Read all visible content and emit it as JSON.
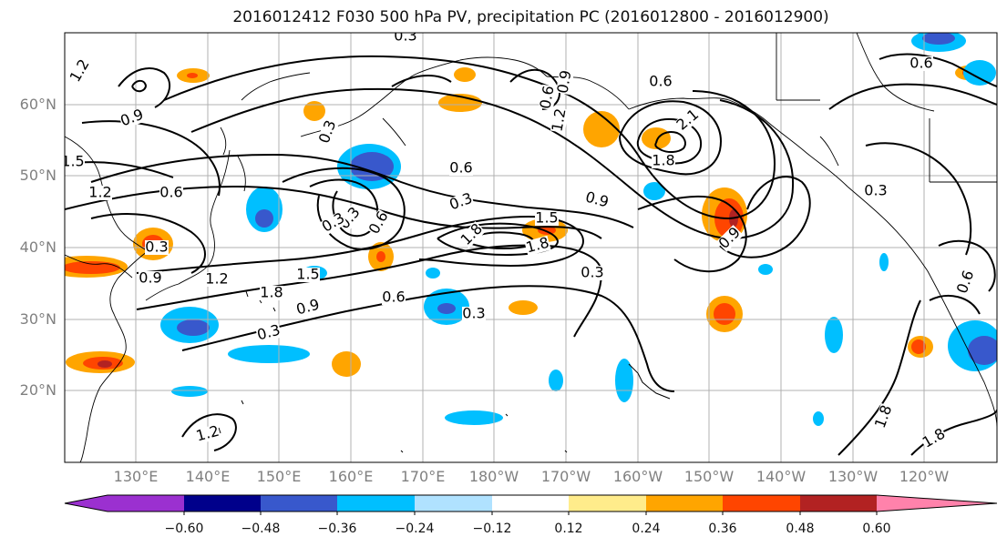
{
  "title": "2016012412 F030 500 hPa PV, precipitation PC (2016012800 - 2016012900)",
  "lat_labels": [
    "60°N",
    "50°N",
    "40°N",
    "30°N",
    "20°N"
  ],
  "lon_labels": [
    "130°E",
    "140°E",
    "150°E",
    "160°E",
    "170°E",
    "180°W",
    "170°W",
    "160°W",
    "150°W",
    "140°W",
    "130°W",
    "120°W"
  ],
  "colorbar": {
    "ticks": [
      "−0.60",
      "−0.48",
      "−0.36",
      "−0.24",
      "−0.12",
      "0.12",
      "0.24",
      "0.36",
      "0.48",
      "0.60"
    ],
    "colors": [
      "#9b30d0",
      "#00008b",
      "#3858cc",
      "#00bfff",
      "#b0e2ff",
      "#ffffff",
      "#ffec8b",
      "#ffa500",
      "#ff4500",
      "#b22222",
      "#ff82ab"
    ]
  },
  "contour_labels": [
    "1.2",
    "0.9",
    "1.5",
    "1.2",
    "0.6",
    "0.3",
    "0.9",
    "1.2",
    "1.8",
    "1.5",
    "0.9",
    "0.3",
    "0.6",
    "0.3",
    "0.3",
    "0.6",
    "1.8",
    "0.3",
    "0.9",
    "0.9",
    "0.6",
    "1.2",
    "1.8",
    "1.5",
    "2.1",
    "1.8",
    "0.9",
    "0.3",
    "0.6",
    "0.6",
    "1.8",
    "1.8",
    "1.2",
    "0.3",
    "0.6",
    "0.3",
    "0.3",
    "0.3",
    "0.6"
  ]
}
